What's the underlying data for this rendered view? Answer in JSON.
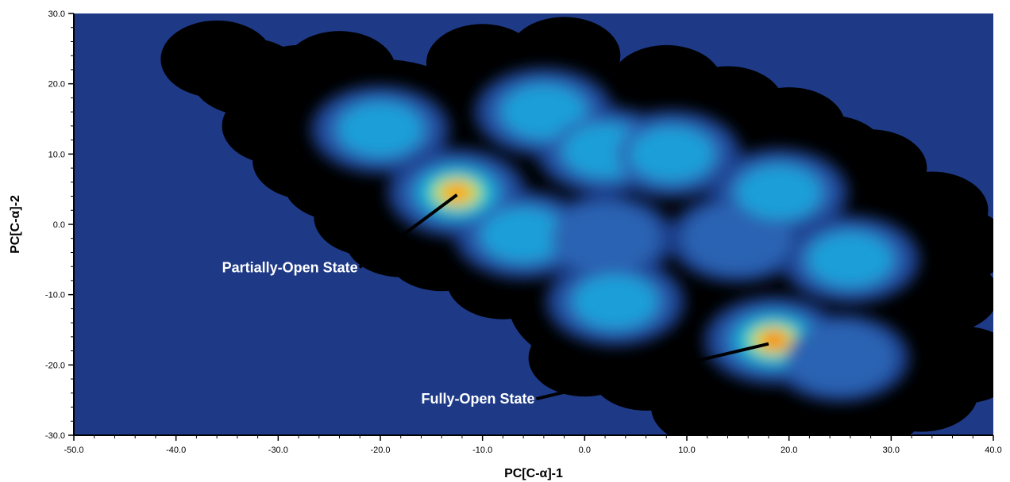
{
  "chart_data": {
    "type": "heatmap",
    "title": "",
    "xlabel": "PC[C-α]-1",
    "ylabel": "PC[C-α]-2",
    "xlim": [
      -50,
      40
    ],
    "ylim": [
      -30,
      30
    ],
    "xticks": [
      -50,
      -40,
      -30,
      -20,
      -10,
      0,
      10,
      20,
      30,
      40
    ],
    "yticks": [
      -30,
      -20,
      -10,
      0,
      10,
      20,
      30
    ],
    "x_tick_labels": [
      "-50.0",
      "-40.0",
      "-30.0",
      "-20.0",
      "-10.0",
      "0.0",
      "10.0",
      "20.0",
      "30.0",
      "40.0"
    ],
    "y_tick_labels": [
      "-30.0",
      "-20.0",
      "-10.0",
      "0.0",
      "10.0",
      "20.0",
      "30.0"
    ],
    "grid": false,
    "colors": {
      "background": "#1e3a87",
      "sample_cloud": "#000000",
      "colormap": [
        "#1e3f8c",
        "#2b63b3",
        "#1a9fd8",
        "#1fd0c0",
        "#d8e020",
        "#ff9a00",
        "#ff0000"
      ]
    },
    "density_peaks": [
      {
        "x": -20,
        "y": 13.5,
        "density": 0.28
      },
      {
        "x": -12.5,
        "y": 4.5,
        "density": 0.85
      },
      {
        "x": -6,
        "y": -1.5,
        "density": 0.25
      },
      {
        "x": 2,
        "y": -2,
        "density": 0.22
      },
      {
        "x": -4,
        "y": 16,
        "density": 0.25
      },
      {
        "x": 2,
        "y": 10.5,
        "density": 0.28
      },
      {
        "x": 8.5,
        "y": 10,
        "density": 0.25
      },
      {
        "x": 3,
        "y": -11,
        "density": 0.3
      },
      {
        "x": 15,
        "y": -2,
        "density": 0.22
      },
      {
        "x": 19,
        "y": 4.5,
        "density": 0.28
      },
      {
        "x": 26,
        "y": -5,
        "density": 0.25
      },
      {
        "x": 18.5,
        "y": -16.5,
        "density": 1.0
      },
      {
        "x": 25,
        "y": -19,
        "density": 0.22
      }
    ],
    "annotations": [
      {
        "text": "Partially-Open State",
        "point": [
          -12.5,
          4.2
        ],
        "label_at": [
          -35.5,
          -6.8
        ]
      },
      {
        "text": "Fully-Open State",
        "point": [
          18,
          -17
        ],
        "label_at": [
          -16,
          -25.5
        ]
      }
    ]
  }
}
